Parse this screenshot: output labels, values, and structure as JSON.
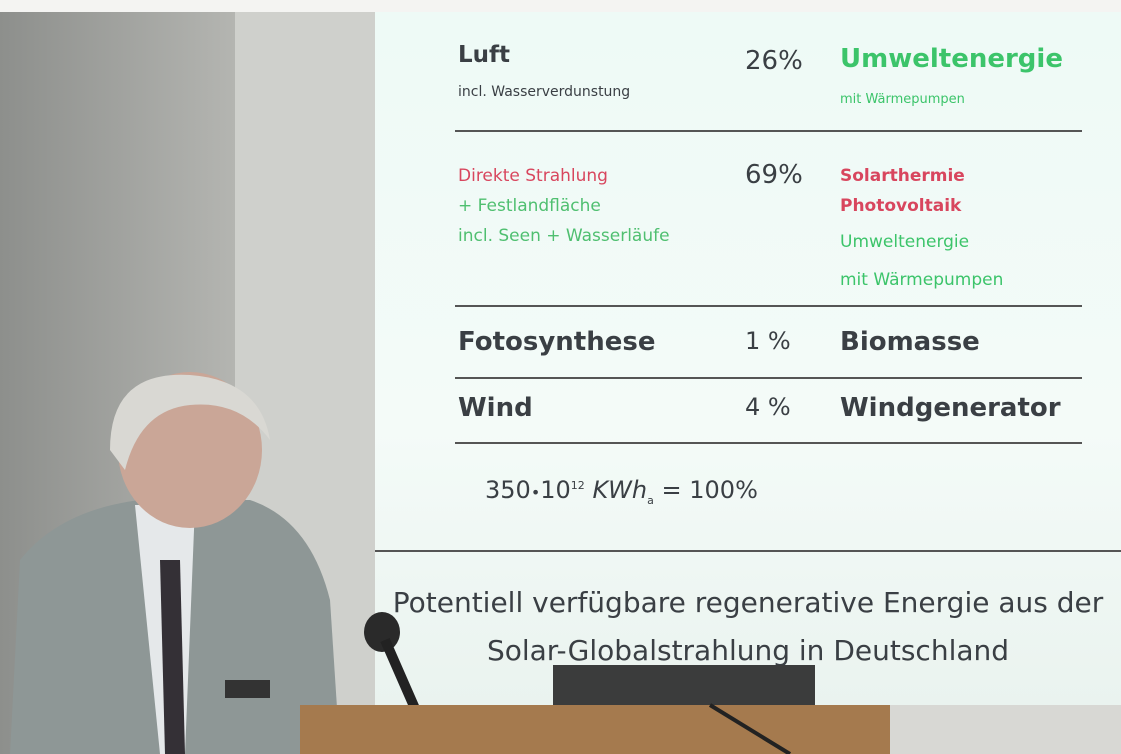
{
  "slide": {
    "rows": [
      {
        "left": [
          "Luft",
          "incl. Wasserverdunstung"
        ],
        "share": "26%",
        "right": [
          "Umweltenergie",
          "mit Wärmepumpen"
        ]
      },
      {
        "left": [
          "Direkte Strahlung",
          "+ Festlandfläche",
          "incl. Seen + Wasserläufe"
        ],
        "share": "69%",
        "right": [
          "Solarthermie",
          "Photovoltaik",
          "Umweltenergie",
          "mit Wärmepumpen"
        ]
      },
      {
        "left": [
          "Fotosynthese"
        ],
        "share": "1 %",
        "right": [
          "Biomasse"
        ]
      },
      {
        "left": [
          "Wind"
        ],
        "share": "4 %",
        "right": [
          "Windgenerator"
        ]
      }
    ],
    "formula": {
      "base": "350",
      "dot": "•",
      "power": "10",
      "exponent": "12",
      "unit": "KWh",
      "subscript": "a",
      "result": "= 100%"
    },
    "caption": [
      "Potentiell verfügbare regenerative Energie aus der",
      "Solar-Globalstrahlung in Deutschland"
    ]
  }
}
